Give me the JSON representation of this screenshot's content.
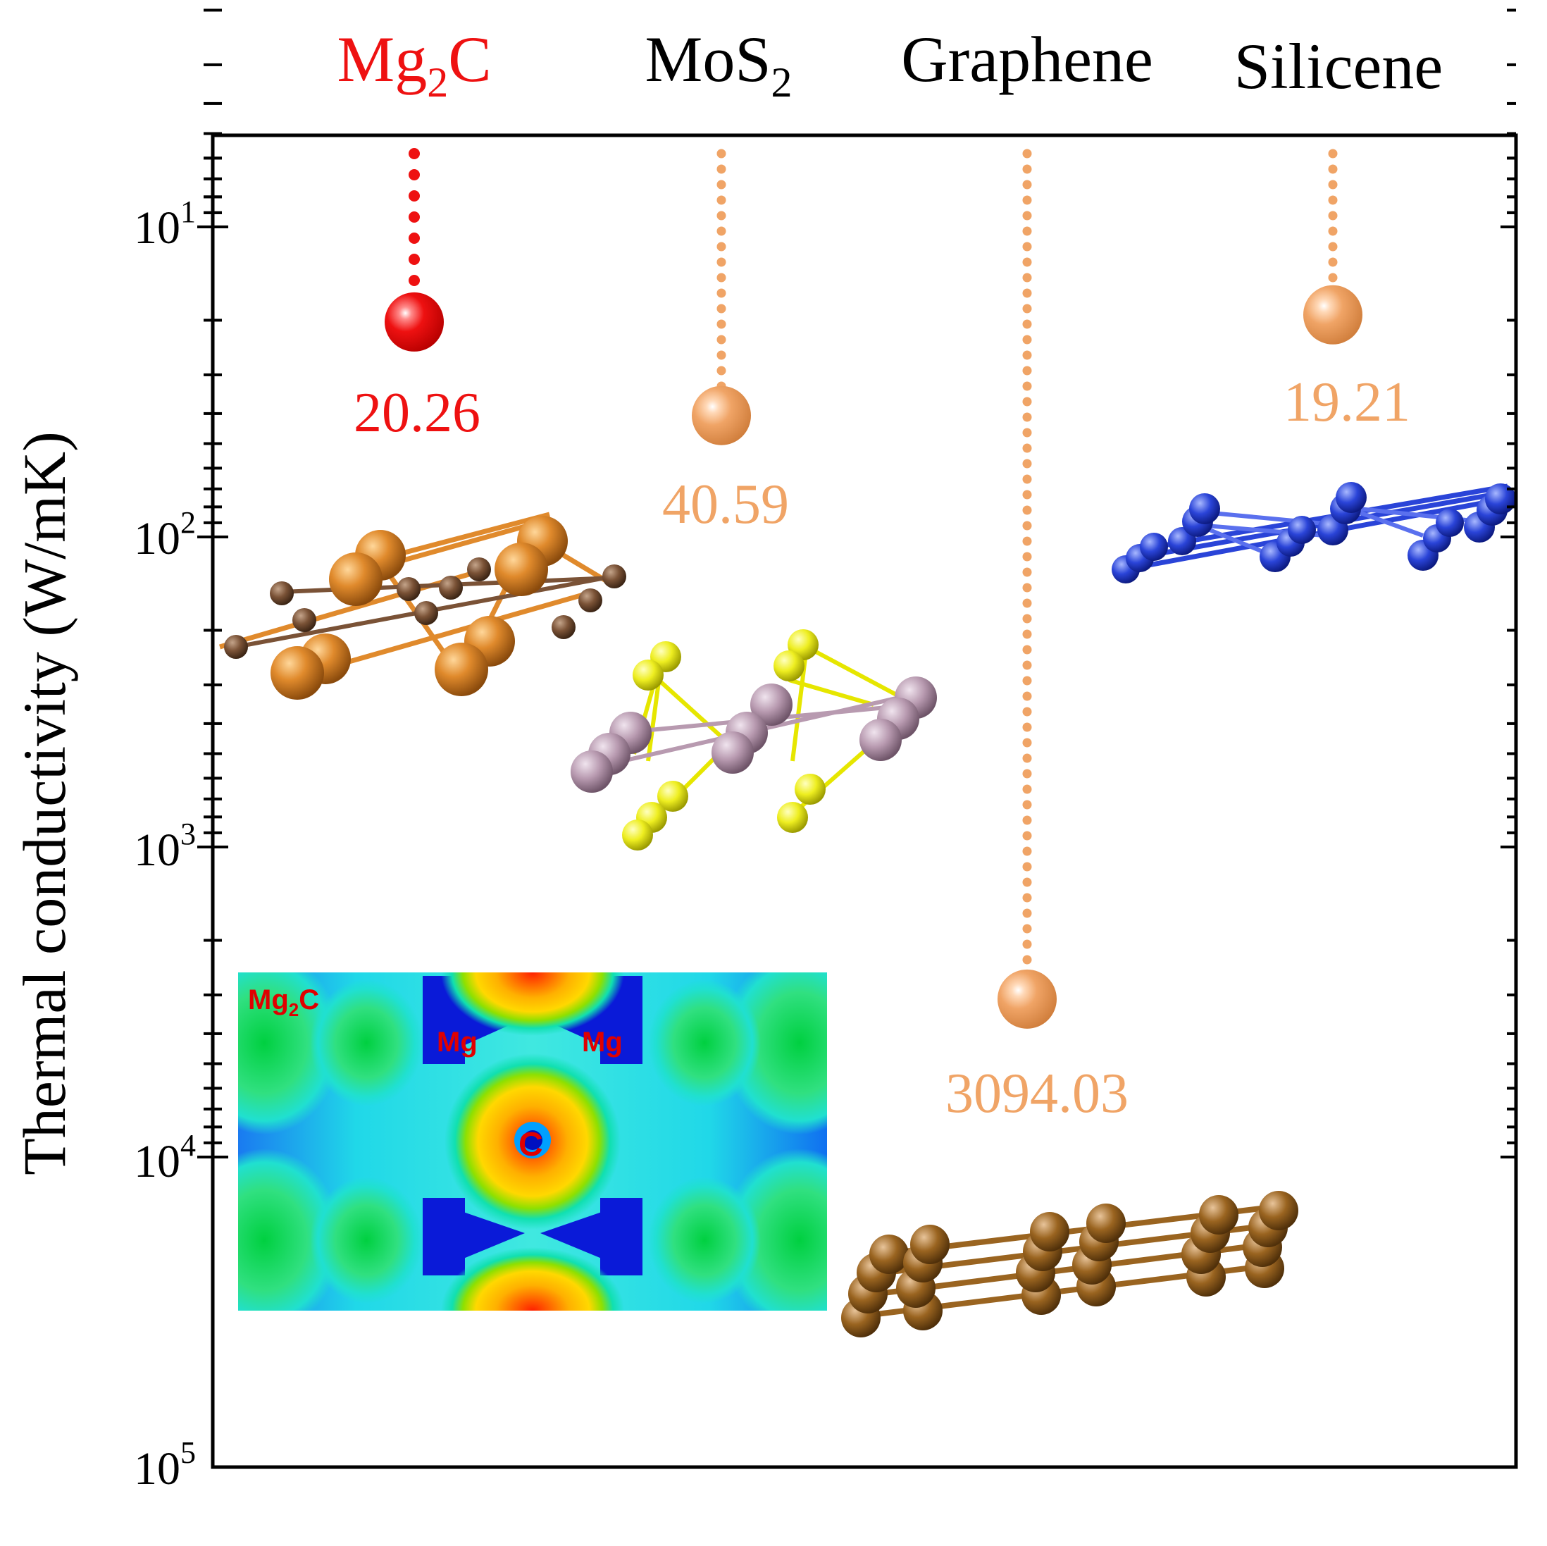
{
  "colors": {
    "highlight": "#ee1111",
    "reference": "#f0a466",
    "axis": "#000000",
    "mg_atom": "#e08a2c",
    "c_atom": "#7a5236",
    "s_atom": "#eeee20",
    "mo_atom": "#b89ab0",
    "si_atom": "#2a44d8",
    "graphene_atom": "#9a6420"
  },
  "chart_data": {
    "type": "scatter",
    "ylabel": "Thermal conductivity (W/mK)",
    "yscale": "log",
    "yaxis_inverted": true,
    "ylim": [
      5,
      100000
    ],
    "yticks": [
      {
        "value": 10,
        "base": "10",
        "exp": "1"
      },
      {
        "value": 100,
        "base": "10",
        "exp": "2"
      },
      {
        "value": 1000,
        "base": "10",
        "exp": "3"
      },
      {
        "value": 10000,
        "base": "10",
        "exp": "4"
      },
      {
        "value": 100000,
        "base": "10",
        "exp": "5"
      }
    ],
    "series": [
      {
        "name": "Mg2C",
        "label_main": "Mg",
        "label_sub": "2",
        "label_tail": "C",
        "value": 20.26,
        "value_label": "20.26",
        "color": "#ee1111"
      },
      {
        "name": "MoS2",
        "label_main": "MoS",
        "label_sub": "2",
        "label_tail": "",
        "value": 40.59,
        "value_label": "40.59",
        "color": "#f0a466"
      },
      {
        "name": "Graphene",
        "label_main": "Graphene",
        "label_sub": "",
        "label_tail": "",
        "value": 3094.03,
        "value_label": "3094.03",
        "color": "#f0a466"
      },
      {
        "name": "Silicene",
        "label_main": "Silicene",
        "label_sub": "",
        "label_tail": "",
        "value": 19.21,
        "value_label": "19.21",
        "color": "#f0a466"
      }
    ],
    "inset": {
      "title_main": "Mg",
      "title_sub": "2",
      "title_tail": "C",
      "atom_labels": [
        "Mg",
        "Mg",
        "C"
      ]
    }
  }
}
